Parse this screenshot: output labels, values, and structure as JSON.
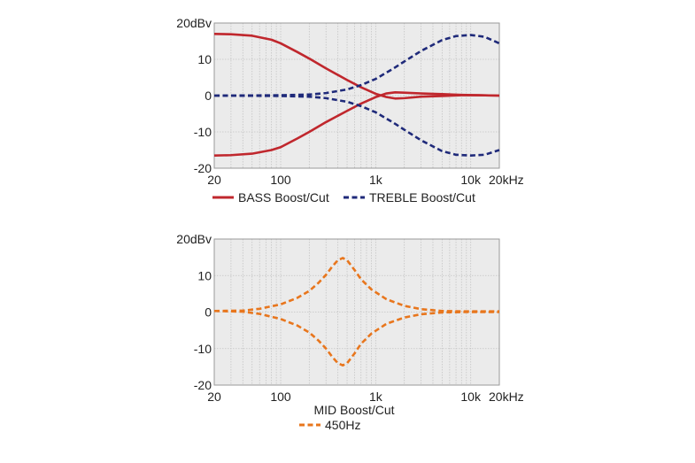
{
  "chart_data": [
    {
      "type": "line",
      "x_scale": "log",
      "xlim": [
        20,
        20000
      ],
      "ylim": [
        -20,
        20
      ],
      "grid": true,
      "plot_background": "#ebebeb",
      "x_ticks": [
        {
          "value": 20,
          "label": "20"
        },
        {
          "value": 100,
          "label": "100"
        },
        {
          "value": 1000,
          "label": "1k"
        },
        {
          "value": 10000,
          "label": "10k"
        },
        {
          "value": 20000,
          "label": "20kHz"
        }
      ],
      "y_ticks": [
        {
          "value": 20,
          "label": "20dBv"
        },
        {
          "value": 10,
          "label": "10"
        },
        {
          "value": 0,
          "label": "0"
        },
        {
          "value": -10,
          "label": "-10"
        },
        {
          "value": -20,
          "label": "-20"
        }
      ],
      "x_grid": [
        20,
        30,
        40,
        50,
        60,
        70,
        80,
        90,
        100,
        200,
        300,
        400,
        500,
        600,
        700,
        800,
        900,
        1000,
        2000,
        3000,
        4000,
        5000,
        6000,
        7000,
        8000,
        9000,
        10000,
        20000
      ],
      "title": "",
      "legend_position": "bottom",
      "legend": [
        {
          "label": "BASS Boost/Cut",
          "color": "#c0272d",
          "dash": "solid"
        },
        {
          "label": "TREBLE Boost/Cut",
          "color": "#1f2a7a",
          "dash": "dashed"
        }
      ],
      "series": [
        {
          "group": "BASS Boost/Cut",
          "color": "#c0272d",
          "dash": "solid",
          "x": [
            20,
            30,
            50,
            80,
            100,
            150,
            200,
            300,
            500,
            700,
            1000,
            1300,
            1600,
            2000,
            3000,
            5000,
            8000,
            12000,
            20000
          ],
          "y": [
            17,
            16.9,
            16.5,
            15.4,
            14.4,
            12,
            10.2,
            7.5,
            4.3,
            2.3,
            0.5,
            -0.4,
            -0.8,
            -0.7,
            -0.3,
            -0.1,
            0.1,
            0.1,
            0
          ]
        },
        {
          "group": "BASS Boost/Cut",
          "color": "#c0272d",
          "dash": "solid",
          "x": [
            20,
            30,
            50,
            80,
            100,
            150,
            200,
            300,
            500,
            700,
            1000,
            1300,
            1600,
            2000,
            3000,
            5000,
            8000,
            12000,
            20000
          ],
          "y": [
            -16.5,
            -16.4,
            -16,
            -15,
            -14.2,
            -11.8,
            -10,
            -7.3,
            -4.2,
            -2.2,
            -0.4,
            0.6,
            0.9,
            0.8,
            0.6,
            0.4,
            0.2,
            0.1,
            0
          ]
        },
        {
          "group": "TREBLE Boost/Cut",
          "color": "#1f2a7a",
          "dash": "dashed",
          "x": [
            20,
            100,
            200,
            300,
            500,
            700,
            1000,
            1500,
            2000,
            3000,
            5000,
            7000,
            10000,
            14000,
            20000
          ],
          "y": [
            0,
            0.1,
            0.3,
            0.7,
            1.7,
            2.9,
            4.6,
            7.3,
            9.4,
            12.3,
            15.3,
            16.4,
            16.7,
            16.2,
            14.4
          ]
        },
        {
          "group": "TREBLE Boost/Cut",
          "color": "#1f2a7a",
          "dash": "dashed",
          "x": [
            20,
            100,
            200,
            300,
            500,
            700,
            1000,
            1500,
            2000,
            3000,
            5000,
            7000,
            10000,
            14000,
            20000
          ],
          "y": [
            0,
            -0.1,
            -0.3,
            -0.7,
            -1.7,
            -2.9,
            -4.6,
            -7.3,
            -9.4,
            -12.3,
            -15.3,
            -16.3,
            -16.5,
            -16.3,
            -15
          ]
        }
      ]
    },
    {
      "type": "line",
      "x_scale": "log",
      "xlim": [
        20,
        20000
      ],
      "ylim": [
        -20,
        20
      ],
      "grid": true,
      "plot_background": "#ebebeb",
      "x_ticks": [
        {
          "value": 20,
          "label": "20"
        },
        {
          "value": 100,
          "label": "100"
        },
        {
          "value": 1000,
          "label": "1k"
        },
        {
          "value": 10000,
          "label": "10k"
        },
        {
          "value": 20000,
          "label": "20kHz"
        }
      ],
      "y_ticks": [
        {
          "value": 20,
          "label": "20dBv"
        },
        {
          "value": 10,
          "label": "10"
        },
        {
          "value": 0,
          "label": "0"
        },
        {
          "value": -10,
          "label": "-10"
        },
        {
          "value": -20,
          "label": "-20"
        }
      ],
      "x_grid": [
        20,
        30,
        40,
        50,
        60,
        70,
        80,
        90,
        100,
        200,
        300,
        400,
        500,
        600,
        700,
        800,
        900,
        1000,
        2000,
        3000,
        4000,
        5000,
        6000,
        7000,
        8000,
        9000,
        10000,
        20000
      ],
      "title": "MID Boost/Cut",
      "legend_position": "bottom",
      "legend": [
        {
          "label": "450Hz",
          "color": "#e8761d",
          "dash": "dashed"
        }
      ],
      "series": [
        {
          "group": "450Hz",
          "color": "#e8761d",
          "dash": "dashed",
          "x": [
            20,
            40,
            60,
            100,
            150,
            200,
            250,
            300,
            350,
            400,
            450,
            500,
            600,
            700,
            900,
            1300,
            2000,
            3000,
            5000,
            8000,
            20000
          ],
          "y": [
            0.3,
            0.4,
            0.9,
            2.1,
            3.9,
            5.8,
            8,
            10.2,
            12.5,
            14.2,
            14.8,
            14.2,
            11.5,
            9,
            6.2,
            3.5,
            1.7,
            0.8,
            0.3,
            0.2,
            0.2
          ]
        },
        {
          "group": "450Hz",
          "color": "#e8761d",
          "dash": "dashed",
          "x": [
            20,
            40,
            60,
            100,
            150,
            200,
            250,
            300,
            350,
            400,
            450,
            500,
            600,
            700,
            900,
            1300,
            2000,
            3000,
            5000,
            8000,
            20000
          ],
          "y": [
            0.3,
            0.1,
            -0.5,
            -1.9,
            -3.7,
            -5.6,
            -7.8,
            -10,
            -12.3,
            -14,
            -14.6,
            -14,
            -11.3,
            -8.7,
            -5.9,
            -3.2,
            -1.5,
            -0.6,
            -0.1,
            0,
            0
          ]
        }
      ]
    }
  ]
}
